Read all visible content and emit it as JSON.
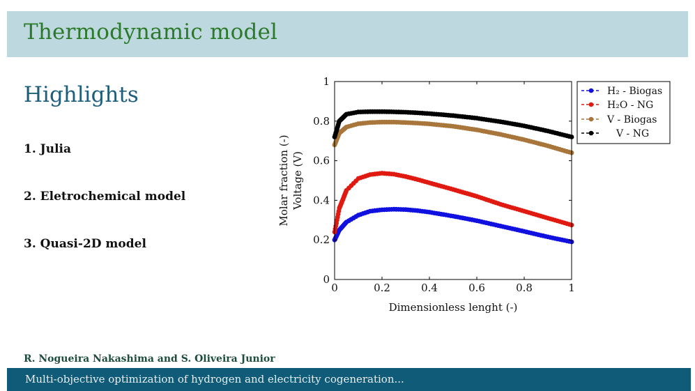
{
  "header": {
    "title": "Thermodynamic model"
  },
  "section": {
    "title": "Highlights"
  },
  "highlights": [
    {
      "number": "1.",
      "label": "Julia"
    },
    {
      "number": "2.",
      "label": "Eletrochemical model"
    },
    {
      "number": "3.",
      "label": "Quasi-2D model"
    }
  ],
  "footer": {
    "authors": "R. Nogueira Nakashima and S. Oliveira Junior",
    "subtitle": "Multi-objective optimization of hydrogen and electricity cogeneration..."
  },
  "chart_data": {
    "type": "line",
    "xlabel": "Dimensionless lenght (-)",
    "ylabel_lines": [
      "Molar fraction (-)",
      "Voltage (V)"
    ],
    "xlim": [
      0,
      1
    ],
    "ylim": [
      0,
      1
    ],
    "x_ticks": [
      "0",
      "0.2",
      "0.4",
      "0.6",
      "0.8",
      "1"
    ],
    "y_ticks": [
      "0",
      "0.2",
      "0.4",
      "0.6",
      "0.8",
      "1"
    ],
    "grid": false,
    "legend_position": "outside-top-right",
    "series": [
      {
        "name": "H₂ - Biogas",
        "color": "#1010e0",
        "x": [
          0,
          0.02,
          0.05,
          0.1,
          0.15,
          0.2,
          0.25,
          0.3,
          0.35,
          0.4,
          0.5,
          0.6,
          0.7,
          0.8,
          0.9,
          1.0
        ],
        "y": [
          0.2,
          0.25,
          0.29,
          0.325,
          0.345,
          0.352,
          0.355,
          0.353,
          0.348,
          0.34,
          0.32,
          0.297,
          0.27,
          0.243,
          0.215,
          0.19
        ]
      },
      {
        "name": "H₂O - NG",
        "color": "#e01a10",
        "x": [
          0,
          0.02,
          0.05,
          0.1,
          0.15,
          0.2,
          0.25,
          0.3,
          0.35,
          0.4,
          0.5,
          0.6,
          0.7,
          0.8,
          0.9,
          1.0
        ],
        "y": [
          0.24,
          0.36,
          0.45,
          0.51,
          0.53,
          0.537,
          0.532,
          0.52,
          0.505,
          0.488,
          0.455,
          0.42,
          0.38,
          0.345,
          0.31,
          0.275
        ]
      },
      {
        "name": "V - Biogas",
        "color": "#a8763a",
        "x": [
          0,
          0.02,
          0.05,
          0.1,
          0.15,
          0.2,
          0.25,
          0.3,
          0.35,
          0.4,
          0.5,
          0.6,
          0.7,
          0.8,
          0.9,
          1.0
        ],
        "y": [
          0.68,
          0.74,
          0.77,
          0.787,
          0.793,
          0.795,
          0.795,
          0.793,
          0.79,
          0.786,
          0.774,
          0.756,
          0.733,
          0.706,
          0.675,
          0.64
        ]
      },
      {
        "name": "V - NG",
        "color": "#000000",
        "x": [
          0,
          0.02,
          0.05,
          0.1,
          0.15,
          0.2,
          0.25,
          0.3,
          0.35,
          0.4,
          0.5,
          0.6,
          0.7,
          0.8,
          0.9,
          1.0
        ],
        "y": [
          0.72,
          0.8,
          0.835,
          0.846,
          0.848,
          0.848,
          0.847,
          0.845,
          0.842,
          0.838,
          0.828,
          0.815,
          0.797,
          0.776,
          0.75,
          0.72
        ]
      }
    ]
  }
}
